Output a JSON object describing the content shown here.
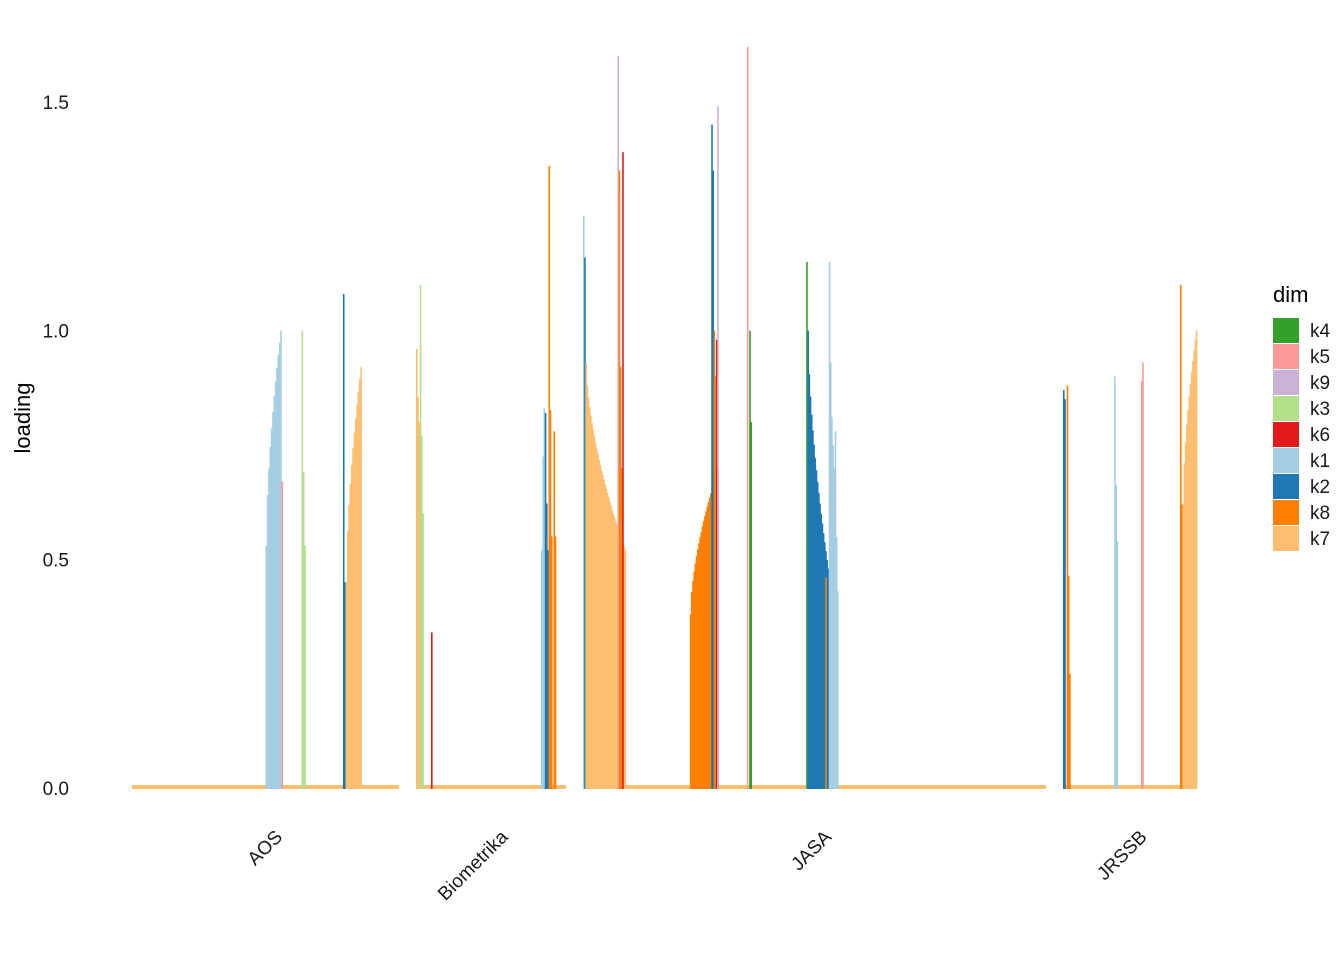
{
  "chart_data": {
    "type": "bar",
    "title": "",
    "xlabel": "",
    "ylabel": "loading",
    "ylim": [
      0,
      1.62
    ],
    "yticks": [
      "0.0",
      "0.5",
      "1.0",
      "1.5"
    ],
    "grid": false,
    "legend_position": "right",
    "legend": {
      "title": "dim",
      "entries": [
        {
          "name": "k4",
          "color": "#33a02c"
        },
        {
          "name": "k5",
          "color": "#fb9a99"
        },
        {
          "name": "k9",
          "color": "#cab2d6"
        },
        {
          "name": "k3",
          "color": "#b2df8a"
        },
        {
          "name": "k6",
          "color": "#e31a1c"
        },
        {
          "name": "k1",
          "color": "#a6cee3"
        },
        {
          "name": "k2",
          "color": "#1f78b4"
        },
        {
          "name": "k8",
          "color": "#ff7f00"
        },
        {
          "name": "k7",
          "color": "#fdbf6f"
        }
      ]
    },
    "facets": [
      {
        "name": "AOS",
        "n_items": 200,
        "baseline_dim": "k7",
        "clusters": [
          {
            "dim": "k1",
            "start": 100,
            "count": 12,
            "peak": 1.0,
            "low": 0.53,
            "order": "asc"
          },
          {
            "dim": "k5",
            "start": 112,
            "count": 1,
            "peak": 0.67,
            "low": 0.67,
            "order": "asc"
          },
          {
            "dim": "k3",
            "start": 127,
            "count": 3,
            "peak": 1.0,
            "low": 0.53,
            "order": "desc"
          },
          {
            "dim": "k2",
            "start": 158,
            "count": 2,
            "peak": 1.08,
            "low": 0.45,
            "order": "desc"
          },
          {
            "dim": "k7",
            "start": 160,
            "count": 12,
            "peak": 0.92,
            "low": 0.45,
            "order": "asc"
          }
        ]
      },
      {
        "name": "Biometrika",
        "n_items": 120,
        "baseline_dim": "k7",
        "clusters": [
          {
            "dim": "k7",
            "start": 0,
            "count": 3,
            "peak": 0.96,
            "low": 0.8,
            "order": "desc"
          },
          {
            "dim": "k3",
            "start": 3,
            "count": 3,
            "peak": 1.1,
            "low": 0.6,
            "order": "desc"
          },
          {
            "dim": "k6",
            "start": 12,
            "count": 1,
            "peak": 0.34,
            "low": 0.34,
            "order": "desc"
          },
          {
            "dim": "k1",
            "start": 100,
            "count": 3,
            "peak": 0.83,
            "low": 0.52,
            "order": "asc"
          },
          {
            "dim": "k2",
            "start": 103,
            "count": 3,
            "peak": 0.82,
            "low": 0.52,
            "order": "desc"
          },
          {
            "dim": "k8",
            "start": 106,
            "count": 3,
            "peak": 1.36,
            "low": 0.55,
            "order": "desc"
          },
          {
            "dim": "k8",
            "start": 110,
            "count": 2,
            "peak": 0.78,
            "low": 0.55,
            "order": "desc"
          }
        ]
      },
      {
        "name": "JASA",
        "n_items": 390,
        "baseline_dim": "k7",
        "clusters": [
          {
            "dim": "k1",
            "start": 0,
            "count": 1,
            "peak": 1.25,
            "low": 1.25,
            "order": "desc"
          },
          {
            "dim": "k2",
            "start": 1,
            "count": 1,
            "peak": 1.16,
            "low": 1.16,
            "order": "desc"
          },
          {
            "dim": "k7",
            "start": 2,
            "count": 34,
            "peak": 0.93,
            "low": 0.52,
            "order": "desc"
          },
          {
            "dim": "k9",
            "start": 29,
            "count": 2,
            "peak": 1.6,
            "low": 1.3,
            "order": "desc"
          },
          {
            "dim": "k8",
            "start": 30,
            "count": 3,
            "peak": 1.35,
            "low": 0.7,
            "order": "desc"
          },
          {
            "dim": "k6",
            "start": 33,
            "count": 1,
            "peak": 1.39,
            "low": 1.39,
            "order": "desc"
          },
          {
            "dim": "k8",
            "start": 90,
            "count": 22,
            "peak": 0.68,
            "low": 0.38,
            "order": "asc"
          },
          {
            "dim": "k2",
            "start": 108,
            "count": 2,
            "peak": 1.45,
            "low": 1.35,
            "order": "desc"
          },
          {
            "dim": "k8",
            "start": 110,
            "count": 2,
            "peak": 1.0,
            "low": 0.9,
            "order": "desc"
          },
          {
            "dim": "k6",
            "start": 112,
            "count": 2,
            "peak": 0.98,
            "low": 0.7,
            "order": "desc"
          },
          {
            "dim": "k9",
            "start": 113,
            "count": 1,
            "peak": 1.49,
            "low": 1.49,
            "order": "desc"
          },
          {
            "dim": "k5",
            "start": 138,
            "count": 1,
            "peak": 1.62,
            "low": 1.62,
            "order": "desc"
          },
          {
            "dim": "k4",
            "start": 140,
            "count": 2,
            "peak": 1.0,
            "low": 0.8,
            "order": "desc"
          },
          {
            "dim": "k4",
            "start": 188,
            "count": 1,
            "peak": 1.15,
            "low": 1.15,
            "order": "desc"
          },
          {
            "dim": "k2",
            "start": 189,
            "count": 18,
            "peak": 1.0,
            "low": 0.48,
            "order": "desc"
          },
          {
            "dim": "k8",
            "start": 204,
            "count": 1,
            "peak": 0.46,
            "low": 0.46,
            "order": "desc"
          },
          {
            "dim": "k1",
            "start": 207,
            "count": 1,
            "peak": 1.15,
            "low": 1.15,
            "order": "desc"
          },
          {
            "dim": "k1",
            "start": 208,
            "count": 4,
            "peak": 0.93,
            "low": 0.7,
            "order": "desc"
          },
          {
            "dim": "k1",
            "start": 212,
            "count": 3,
            "peak": 0.78,
            "low": 0.43,
            "order": "desc"
          }
        ]
      },
      {
        "name": "JRSSB",
        "n_items": 110,
        "baseline_dim": "k7",
        "clusters": [
          {
            "dim": "k2",
            "start": 0,
            "count": 2,
            "peak": 0.87,
            "low": 0.85,
            "order": "desc"
          },
          {
            "dim": "k8",
            "start": 3,
            "count": 3,
            "peak": 0.88,
            "low": 0.25,
            "order": "desc"
          },
          {
            "dim": "k1",
            "start": 42,
            "count": 3,
            "peak": 0.9,
            "low": 0.54,
            "order": "desc"
          },
          {
            "dim": "k5",
            "start": 64,
            "count": 1,
            "peak": 0.89,
            "low": 0.89,
            "order": "desc"
          },
          {
            "dim": "k5",
            "start": 65,
            "count": 1,
            "peak": 0.93,
            "low": 0.93,
            "order": "desc"
          },
          {
            "dim": "k8",
            "start": 96,
            "count": 2,
            "peak": 1.1,
            "low": 0.62,
            "order": "desc"
          },
          {
            "dim": "k7",
            "start": 98,
            "count": 12,
            "peak": 1.0,
            "low": 0.62,
            "order": "asc"
          }
        ]
      }
    ]
  }
}
